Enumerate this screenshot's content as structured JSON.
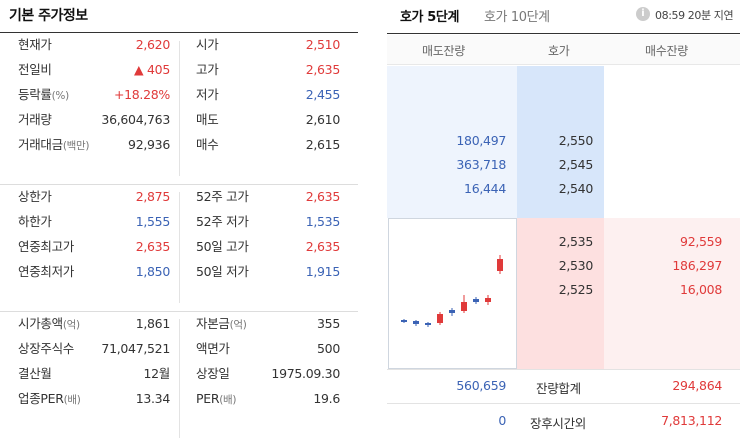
{
  "basic_info": {
    "title": "기본 주가정보",
    "groups": [
      {
        "rows": [
          {
            "l1": "현재가",
            "u1": "",
            "v1": "2,620",
            "c1": "red",
            "l2": "시가",
            "u2": "",
            "v2": "2,510",
            "c2": "red"
          },
          {
            "l1": "전일비",
            "u1": "",
            "v1": "▲ 405",
            "c1": "red",
            "l2": "고가",
            "u2": "",
            "v2": "2,635",
            "c2": "red"
          },
          {
            "l1": "등락률",
            "u1": "(%)",
            "v1": "+18.28%",
            "c1": "red",
            "l2": "저가",
            "u2": "",
            "v2": "2,455",
            "c2": "blue"
          },
          {
            "l1": "거래량",
            "u1": "",
            "v1": "36,604,763",
            "c1": "black",
            "l2": "매도",
            "u2": "",
            "v2": "2,610",
            "c2": "black"
          },
          {
            "l1": "거래대금",
            "u1": "(백만)",
            "v1": "92,936",
            "c1": "black",
            "l2": "매수",
            "u2": "",
            "v2": "2,615",
            "c2": "black"
          }
        ]
      },
      {
        "rows": [
          {
            "l1": "상한가",
            "u1": "",
            "v1": "2,875",
            "c1": "red",
            "l2": "52주 고가",
            "u2": "",
            "v2": "2,635",
            "c2": "red"
          },
          {
            "l1": "하한가",
            "u1": "",
            "v1": "1,555",
            "c1": "blue",
            "l2": "52주 저가",
            "u2": "",
            "v2": "1,535",
            "c2": "blue"
          },
          {
            "l1": "연중최고가",
            "u1": "",
            "v1": "2,635",
            "c1": "red",
            "l2": "50일 고가",
            "u2": "",
            "v2": "2,635",
            "c2": "red"
          },
          {
            "l1": "연중최저가",
            "u1": "",
            "v1": "1,850",
            "c1": "blue",
            "l2": "50일 저가",
            "u2": "",
            "v2": "1,915",
            "c2": "blue"
          }
        ]
      },
      {
        "rows": [
          {
            "l1": "시가총액",
            "u1": "(억)",
            "v1": "1,861",
            "c1": "black",
            "l2": "자본금",
            "u2": "(억)",
            "v2": "355",
            "c2": "black"
          },
          {
            "l1": "상장주식수",
            "u1": "",
            "v1": "71,047,521",
            "c1": "black",
            "l2": "액면가",
            "u2": "",
            "v2": "500",
            "c2": "black"
          },
          {
            "l1": "결산월",
            "u1": "",
            "v1": "12월",
            "c1": "black",
            "l2": "상장일",
            "u2": "",
            "v2": "1975.09.30",
            "c2": "black"
          },
          {
            "l1": "업종PER",
            "u1": "(배)",
            "v1": "13.34",
            "c1": "black",
            "l2": "PER",
            "u2": "(배)",
            "v2": "19.6",
            "c2": "black"
          }
        ]
      }
    ]
  },
  "orderbook": {
    "tabs": [
      {
        "label": "호가 5단계",
        "active": true
      },
      {
        "label": "호가 10단계",
        "active": false
      }
    ],
    "info_icon": "info-icon",
    "timestamp": "08:59 20분 지연",
    "headers": {
      "sell_volume": "매도잔량",
      "price": "호가",
      "buy_volume": "매수잔량"
    },
    "asks": [
      {
        "volume": "180,497",
        "price": "2,550"
      },
      {
        "volume": "363,718",
        "price": "2,545"
      },
      {
        "volume": "16,444",
        "price": "2,540"
      }
    ],
    "bids": [
      {
        "price": "2,535",
        "volume": "92,559"
      },
      {
        "price": "2,530",
        "volume": "186,297"
      },
      {
        "price": "2,525",
        "volume": "16,008"
      }
    ],
    "total": {
      "sell": "560,659",
      "label": "잔량합계",
      "buy": "294,864"
    },
    "after_hours": {
      "sell": "0",
      "label": "장후시간외",
      "buy": "7,813,112"
    },
    "colors": {
      "up": "#e03a3a",
      "down": "#3b63b5"
    }
  }
}
